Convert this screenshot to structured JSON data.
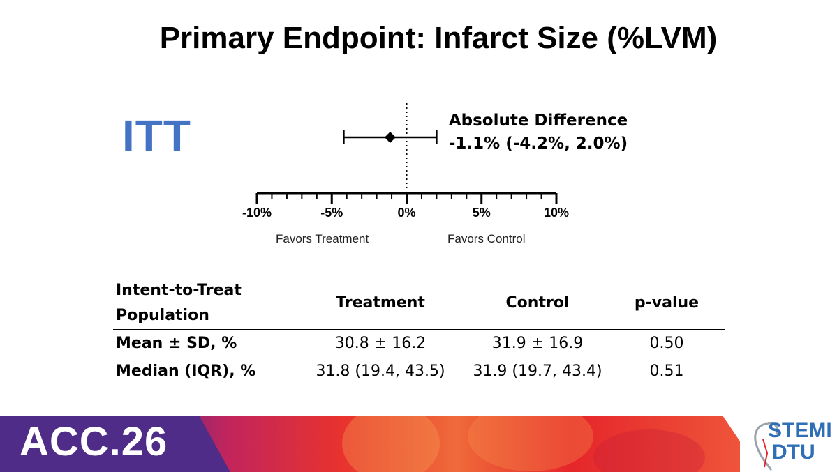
{
  "title": "Primary Endpoint: Infarct Size (%LVM)",
  "itt_label": "ITT",
  "chart_data": {
    "type": "forest",
    "point": -1.1,
    "ci_low": -4.2,
    "ci_high": 2.0,
    "reference": 0,
    "xlim": [
      -10,
      10
    ],
    "ticks": [
      -10,
      -5,
      0,
      5,
      10
    ],
    "tick_labels": [
      "-10%",
      "-5%",
      "0%",
      "5%",
      "10%"
    ],
    "annotation_title": "Absolute Difference",
    "annotation_value": "-1.1% (-4.2%, 2.0%)",
    "left_label": "Favors Treatment",
    "right_label": "Favors Control"
  },
  "table": {
    "header_line1": "Intent-to-Treat",
    "header_line2": "Population",
    "columns": [
      "Treatment",
      "Control",
      "p-value"
    ],
    "rows": [
      {
        "label": "Mean ± SD, %",
        "treatment": "30.8 ± 16.2",
        "control": "31.9 ± 16.9",
        "p": "0.50"
      },
      {
        "label": "Median (IQR), %",
        "treatment": "31.8 (19.4, 43.5)",
        "control": "31.9 (19.7, 43.4)",
        "p": "0.51"
      }
    ]
  },
  "footer": {
    "event": "ACC.26",
    "logo_line1": "STEMI",
    "logo_line2": "DTU"
  },
  "colors": {
    "itt": "#4472c4",
    "banner_purple": "#5b2a86",
    "banner_red": "#e5262a",
    "logo_blue": "#2f6fb6"
  }
}
